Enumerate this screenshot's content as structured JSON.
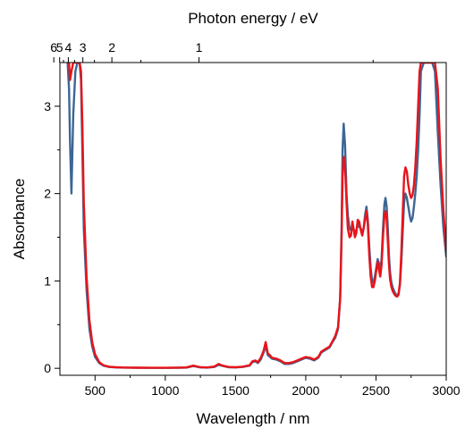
{
  "chart_data": {
    "type": "line",
    "xlabel": "Wavelength / nm",
    "ylabel": "Absorbance",
    "x2label": "Photon energy / eV",
    "xlim": [
      250,
      3000
    ],
    "ylim": [
      -0.08,
      3.5
    ],
    "x_ticks": [
      500,
      1000,
      1500,
      2000,
      2500,
      3000
    ],
    "y_ticks": [
      0,
      1,
      2,
      3
    ],
    "x2_ticks": [
      6,
      5,
      4,
      3,
      2,
      1
    ],
    "colors": {
      "blue": "#3c6694",
      "red": "#e8141a"
    },
    "series": [
      {
        "color": "blue",
        "x": [
          305,
          315,
          322,
          332,
          345,
          360,
          375,
          390,
          400,
          410,
          420,
          440,
          460,
          480,
          500,
          530,
          560,
          600,
          650,
          700,
          800,
          900,
          1000,
          1100,
          1150,
          1200,
          1250,
          1300,
          1350,
          1380,
          1400,
          1450,
          1500,
          1550,
          1600,
          1620,
          1640,
          1660,
          1680,
          1700,
          1715,
          1730,
          1745,
          1760,
          1790,
          1820,
          1850,
          1880,
          1910,
          1940,
          1970,
          2000,
          2030,
          2060,
          2090,
          2110,
          2130,
          2150,
          2170,
          2190,
          2210,
          2230,
          2245,
          2255,
          2262,
          2270,
          2280,
          2290,
          2300,
          2312,
          2322,
          2332,
          2340,
          2350,
          2360,
          2370,
          2380,
          2392,
          2402,
          2412,
          2422,
          2432,
          2442,
          2452,
          2462,
          2472,
          2482,
          2492,
          2502,
          2512,
          2522,
          2530,
          2540,
          2550,
          2560,
          2568,
          2576,
          2584,
          2592,
          2600,
          2610,
          2620,
          2630,
          2640,
          2650,
          2660,
          2670,
          2680,
          2690,
          2700,
          2710,
          2720,
          2730,
          2740,
          2750,
          2760,
          2770,
          2780,
          2790,
          2800,
          2810,
          2820,
          2840,
          2860,
          2880,
          2900,
          2920,
          2940,
          2960,
          2980,
          3000
        ],
        "y": [
          3.5,
          3.2,
          2.6,
          2.0,
          2.9,
          3.4,
          3.5,
          3.5,
          3.3,
          2.5,
          1.6,
          0.9,
          0.45,
          0.25,
          0.13,
          0.06,
          0.03,
          0.015,
          0.01,
          0.008,
          0.006,
          0.005,
          0.005,
          0.006,
          0.008,
          0.025,
          0.01,
          0.008,
          0.015,
          0.04,
          0.03,
          0.012,
          0.01,
          0.015,
          0.03,
          0.07,
          0.08,
          0.06,
          0.1,
          0.18,
          0.26,
          0.15,
          0.13,
          0.11,
          0.1,
          0.08,
          0.05,
          0.05,
          0.06,
          0.08,
          0.1,
          0.12,
          0.11,
          0.09,
          0.12,
          0.18,
          0.2,
          0.22,
          0.24,
          0.3,
          0.35,
          0.45,
          0.8,
          1.6,
          2.5,
          2.8,
          2.55,
          2.0,
          1.75,
          1.6,
          1.58,
          1.65,
          1.6,
          1.55,
          1.58,
          1.65,
          1.62,
          1.6,
          1.55,
          1.6,
          1.75,
          1.85,
          1.7,
          1.4,
          1.15,
          1.0,
          0.98,
          1.05,
          1.15,
          1.25,
          1.2,
          1.1,
          1.25,
          1.6,
          1.88,
          1.95,
          1.85,
          1.6,
          1.3,
          1.1,
          0.98,
          0.92,
          0.88,
          0.85,
          0.84,
          0.85,
          0.95,
          1.2,
          1.55,
          1.9,
          2.0,
          1.95,
          1.85,
          1.75,
          1.68,
          1.72,
          1.85,
          2.0,
          2.2,
          2.5,
          2.9,
          3.4,
          3.5,
          3.5,
          3.5,
          3.5,
          3.4,
          2.7,
          2.1,
          1.6,
          1.28
        ]
      },
      {
        "color": "red",
        "x": [
          305,
          315,
          322,
          332,
          345,
          360,
          375,
          390,
          400,
          410,
          420,
          440,
          460,
          480,
          500,
          530,
          560,
          600,
          650,
          700,
          800,
          900,
          1000,
          1100,
          1150,
          1200,
          1250,
          1300,
          1350,
          1380,
          1400,
          1450,
          1500,
          1550,
          1600,
          1620,
          1640,
          1660,
          1680,
          1700,
          1715,
          1730,
          1745,
          1760,
          1790,
          1820,
          1850,
          1880,
          1910,
          1940,
          1970,
          2000,
          2030,
          2060,
          2090,
          2110,
          2130,
          2150,
          2170,
          2190,
          2210,
          2230,
          2245,
          2255,
          2262,
          2270,
          2280,
          2290,
          2300,
          2312,
          2322,
          2332,
          2340,
          2350,
          2360,
          2370,
          2380,
          2392,
          2402,
          2412,
          2422,
          2432,
          2442,
          2452,
          2462,
          2472,
          2482,
          2492,
          2502,
          2512,
          2522,
          2530,
          2540,
          2550,
          2560,
          2568,
          2576,
          2584,
          2592,
          2600,
          2610,
          2620,
          2630,
          2640,
          2650,
          2660,
          2670,
          2680,
          2690,
          2700,
          2710,
          2720,
          2730,
          2740,
          2750,
          2760,
          2770,
          2780,
          2790,
          2800,
          2810,
          2820,
          2840,
          2860,
          2880,
          2900,
          2920,
          2940,
          2960,
          2980,
          3000
        ],
        "y": [
          3.5,
          3.5,
          3.3,
          3.4,
          3.5,
          3.5,
          3.5,
          3.5,
          3.4,
          2.8,
          1.9,
          1.05,
          0.55,
          0.3,
          0.16,
          0.07,
          0.035,
          0.018,
          0.012,
          0.009,
          0.007,
          0.006,
          0.006,
          0.008,
          0.01,
          0.03,
          0.012,
          0.01,
          0.02,
          0.05,
          0.035,
          0.015,
          0.012,
          0.018,
          0.035,
          0.08,
          0.09,
          0.07,
          0.12,
          0.2,
          0.3,
          0.17,
          0.15,
          0.12,
          0.11,
          0.09,
          0.06,
          0.06,
          0.07,
          0.09,
          0.11,
          0.13,
          0.12,
          0.1,
          0.13,
          0.19,
          0.21,
          0.23,
          0.25,
          0.31,
          0.37,
          0.47,
          0.8,
          1.5,
          2.2,
          2.42,
          2.3,
          1.9,
          1.6,
          1.5,
          1.52,
          1.68,
          1.6,
          1.5,
          1.55,
          1.7,
          1.68,
          1.58,
          1.52,
          1.6,
          1.7,
          1.8,
          1.65,
          1.3,
          1.05,
          0.93,
          0.93,
          1.0,
          1.12,
          1.22,
          1.12,
          1.05,
          1.18,
          1.5,
          1.75,
          1.8,
          1.7,
          1.45,
          1.2,
          1.02,
          0.93,
          0.88,
          0.85,
          0.83,
          0.82,
          0.84,
          0.97,
          1.3,
          1.75,
          2.2,
          2.3,
          2.25,
          2.1,
          2.0,
          1.95,
          1.98,
          2.1,
          2.3,
          2.6,
          3.0,
          3.4,
          3.5,
          3.5,
          3.5,
          3.5,
          3.5,
          3.5,
          3.2,
          2.4,
          1.8,
          1.35
        ]
      }
    ]
  }
}
